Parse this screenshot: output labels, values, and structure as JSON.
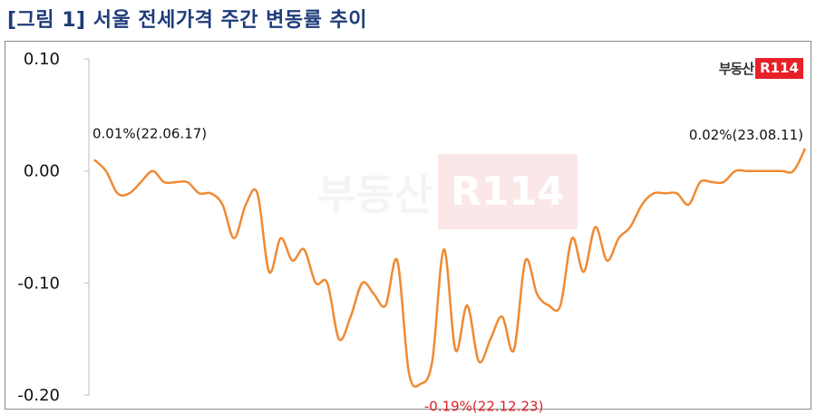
{
  "page": {
    "title": "[그림 1] 서울 전세가격 주간 변동률 추이"
  },
  "brand": {
    "logo_text": "부동산",
    "logo_box": "R114",
    "accent": "#e8202a"
  },
  "chart_data": {
    "type": "line",
    "title": "[그림 1] 서울 전세가격 주간 변동률 추이",
    "xlabel": "",
    "ylabel": "",
    "ylim": [
      -0.2,
      0.1
    ],
    "yticks": [
      "0.10",
      "0.00",
      "-0.10",
      "-0.20"
    ],
    "ytick_values": [
      0.1,
      0.0,
      -0.1,
      -0.2
    ],
    "grid": false,
    "line_color": "#ef8a33",
    "series": [
      {
        "values": [
          0.01,
          0.0,
          -0.02,
          -0.02,
          -0.01,
          0.0,
          -0.01,
          -0.01,
          -0.01,
          -0.02,
          -0.02,
          -0.03,
          -0.06,
          -0.03,
          -0.02,
          -0.09,
          -0.06,
          -0.08,
          -0.07,
          -0.1,
          -0.1,
          -0.15,
          -0.13,
          -0.1,
          -0.11,
          -0.12,
          -0.08,
          -0.18,
          -0.19,
          -0.17,
          -0.07,
          -0.16,
          -0.12,
          -0.17,
          -0.15,
          -0.13,
          -0.16,
          -0.08,
          -0.11,
          -0.12,
          -0.12,
          -0.06,
          -0.09,
          -0.05,
          -0.08,
          -0.06,
          -0.05,
          -0.03,
          -0.02,
          -0.02,
          -0.02,
          -0.03,
          -0.01,
          -0.01,
          -0.01,
          0.0,
          0.0,
          0.0,
          0.0,
          0.0,
          0.0,
          0.02
        ]
      }
    ],
    "annotations": [
      {
        "text": "0.01%(22.06.17)",
        "index": 0,
        "value": 0.01
      },
      {
        "text": "-0.19%(22.12.23)",
        "index": 28,
        "value": -0.19
      },
      {
        "text": "0.02%(23.08.11)",
        "index": 61,
        "value": 0.02
      }
    ]
  }
}
